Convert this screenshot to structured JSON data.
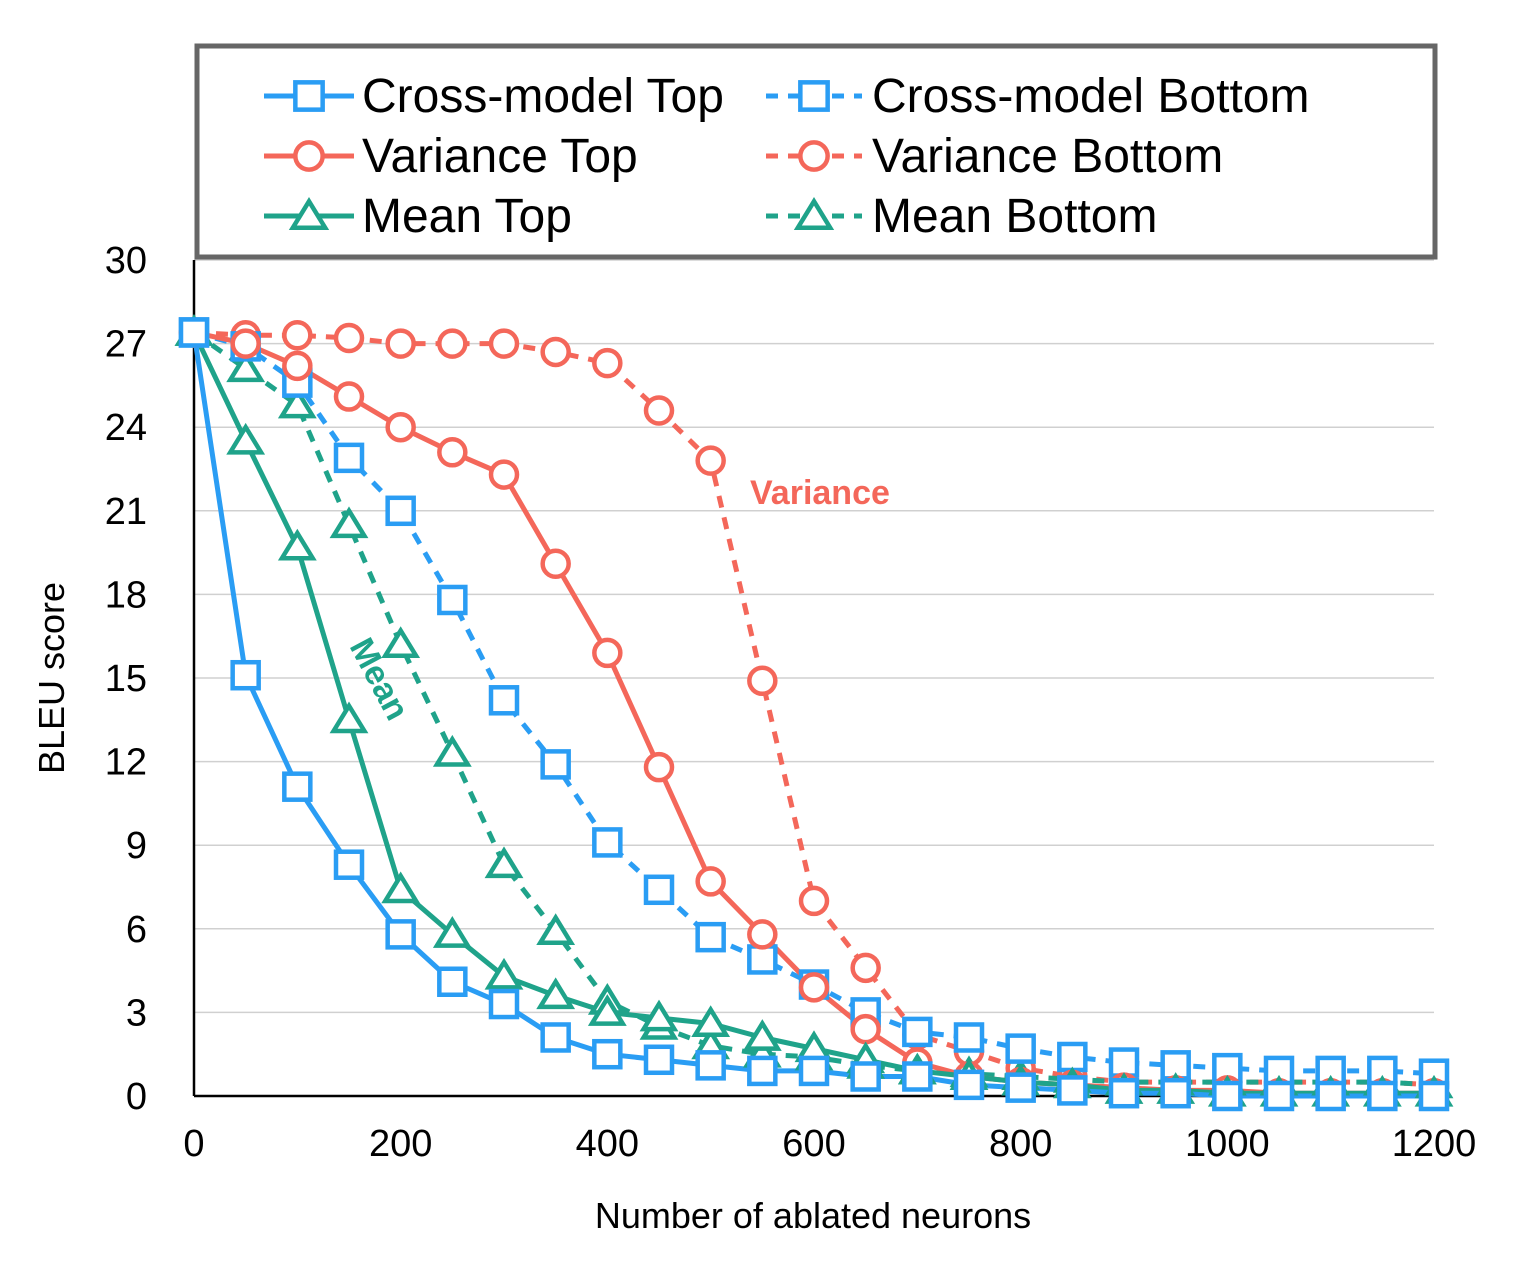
{
  "chart_data": {
    "type": "line",
    "title": "",
    "xlabel": "Number of ablated neurons",
    "ylabel": "BLEU score",
    "xlim": [
      0,
      1200
    ],
    "ylim": [
      0,
      30
    ],
    "xticks": [
      0,
      200,
      400,
      600,
      800,
      1000,
      1200
    ],
    "yticks": [
      0,
      3,
      6,
      9,
      12,
      15,
      18,
      21,
      24,
      27,
      30
    ],
    "grid": "horizontal",
    "legend_position": "top",
    "x": [
      0,
      50,
      100,
      150,
      200,
      250,
      300,
      350,
      400,
      450,
      500,
      550,
      600,
      650,
      700,
      750,
      800,
      850,
      900,
      950,
      1000,
      1050,
      1100,
      1150,
      1200
    ],
    "series": [
      {
        "name": "Cross-model Top",
        "color": "#2a9df4",
        "dash": "solid",
        "marker": "square",
        "values": [
          27.4,
          15.1,
          11.1,
          8.3,
          5.8,
          4.1,
          3.3,
          2.1,
          1.5,
          1.3,
          1.1,
          0.9,
          0.9,
          0.7,
          0.7,
          0.4,
          0.3,
          0.2,
          0.1,
          0.1,
          0.0,
          0.0,
          0.0,
          0.0,
          0.0
        ]
      },
      {
        "name": "Cross-model  Bottom",
        "color": "#2a9df4",
        "dash": "dotted",
        "marker": "square",
        "values": [
          27.4,
          26.9,
          25.6,
          22.9,
          21.0,
          17.8,
          14.2,
          11.9,
          9.1,
          7.4,
          5.7,
          4.9,
          4.0,
          3.0,
          2.3,
          2.1,
          1.7,
          1.4,
          1.2,
          1.1,
          1.0,
          0.9,
          0.9,
          0.9,
          0.8
        ]
      },
      {
        "name": "Variance Top",
        "color": "#f4675a",
        "dash": "solid",
        "marker": "circle",
        "values": [
          27.4,
          27.0,
          26.2,
          25.1,
          24.0,
          23.1,
          22.3,
          19.1,
          15.9,
          11.8,
          7.7,
          5.8,
          3.9,
          2.4,
          1.2,
          0.7,
          0.5,
          0.4,
          0.3,
          0.2,
          0.2,
          0.1,
          0.1,
          0.1,
          0.1
        ]
      },
      {
        "name": "Variance Bottom",
        "color": "#f4675a",
        "dash": "dotted",
        "marker": "circle",
        "values": [
          27.4,
          27.3,
          27.3,
          27.2,
          27.0,
          27.0,
          27.0,
          26.7,
          26.3,
          24.6,
          22.8,
          14.9,
          7.0,
          4.6,
          2.2,
          1.6,
          1.0,
          0.7,
          0.5,
          0.5,
          0.5,
          0.5,
          0.5,
          0.5,
          0.4
        ]
      },
      {
        "name": "Mean Top",
        "color": "#1fa38a",
        "dash": "solid",
        "marker": "triangle",
        "values": [
          27.4,
          23.5,
          19.7,
          13.5,
          7.4,
          5.8,
          4.3,
          3.6,
          3.0,
          2.8,
          2.6,
          2.1,
          1.7,
          1.3,
          0.9,
          0.7,
          0.5,
          0.4,
          0.2,
          0.2,
          0.1,
          0.1,
          0.1,
          0.1,
          0.1
        ]
      },
      {
        "name": "Mean Bottom",
        "color": "#1fa38a",
        "dash": "dotted",
        "marker": "triangle",
        "values": [
          27.4,
          26.1,
          24.8,
          20.5,
          16.2,
          12.3,
          8.3,
          5.9,
          3.4,
          2.5,
          1.8,
          1.5,
          1.4,
          1.1,
          0.9,
          0.8,
          0.7,
          0.6,
          0.5,
          0.5,
          0.5,
          0.5,
          0.5,
          0.5,
          0.4
        ]
      }
    ],
    "annotations": [
      {
        "text": "Variance",
        "color": "#f4675a"
      },
      {
        "text": "Mean",
        "color": "#1fa38a"
      }
    ]
  }
}
